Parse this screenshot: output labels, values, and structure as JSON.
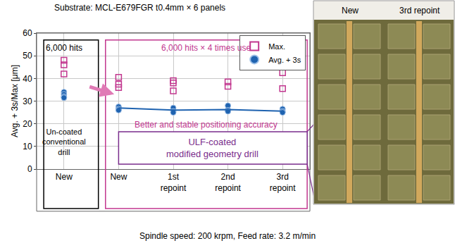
{
  "chart_data": {
    "type": "scatter",
    "title": "Substrate: MCL-E679FGR t0.4mm × 6 panels",
    "subtitle": "Spindle speed: 200 krpm, Feed rate: 3.2 m/min",
    "y_label": "Avg. + 3s/Max [μm]",
    "categories": [
      "New",
      "New",
      "1st\nrepoint",
      "2nd\nrepoint",
      "3rd\nrepoint"
    ],
    "series": [
      {
        "name": "Max.",
        "color": "#c2378f",
        "marker": "square-open",
        "values": [
          [
            48,
            46,
            42
          ],
          [
            40.5,
            37.5,
            36
          ],
          [
            39,
            38,
            34.5
          ],
          [
            38.5,
            36.5
          ],
          [
            42.5,
            35.5
          ]
        ]
      },
      {
        "name": "Avg. + 3s",
        "color": "#1f63b0",
        "marker": "circle",
        "values": [
          [
            34,
            33,
            32,
            31.5
          ],
          [
            27.5,
            26.5,
            26
          ],
          [
            27,
            25.5,
            25
          ],
          [
            28,
            26,
            25.5
          ],
          [
            26.5,
            25.5,
            25
          ]
        ]
      },
      {
        "type": "line",
        "color": "#1f63b0",
        "values": [
          null,
          27,
          26,
          26.3,
          25.6
        ]
      }
    ],
    "ylim": [
      0,
      60
    ],
    "yticks": [
      0,
      10,
      20,
      30,
      40,
      50,
      60
    ],
    "grid": true,
    "legend": "upper right",
    "annotations": [
      {
        "text": "6,000 hits",
        "color": "#000000"
      },
      {
        "text": "6,000 hits × 4 times use",
        "color": "#c2378f"
      },
      {
        "text": "Un-coated\nconventional\ndrill",
        "color": "#000000"
      },
      {
        "text": "Better and stable positioning accuracy",
        "color": "#c2378f"
      },
      {
        "text": "ULF-coated\nmodified geometry drill",
        "color": "#7a2d8c"
      }
    ],
    "photo": {
      "labels": [
        "New",
        "3rd repoint"
      ]
    }
  }
}
